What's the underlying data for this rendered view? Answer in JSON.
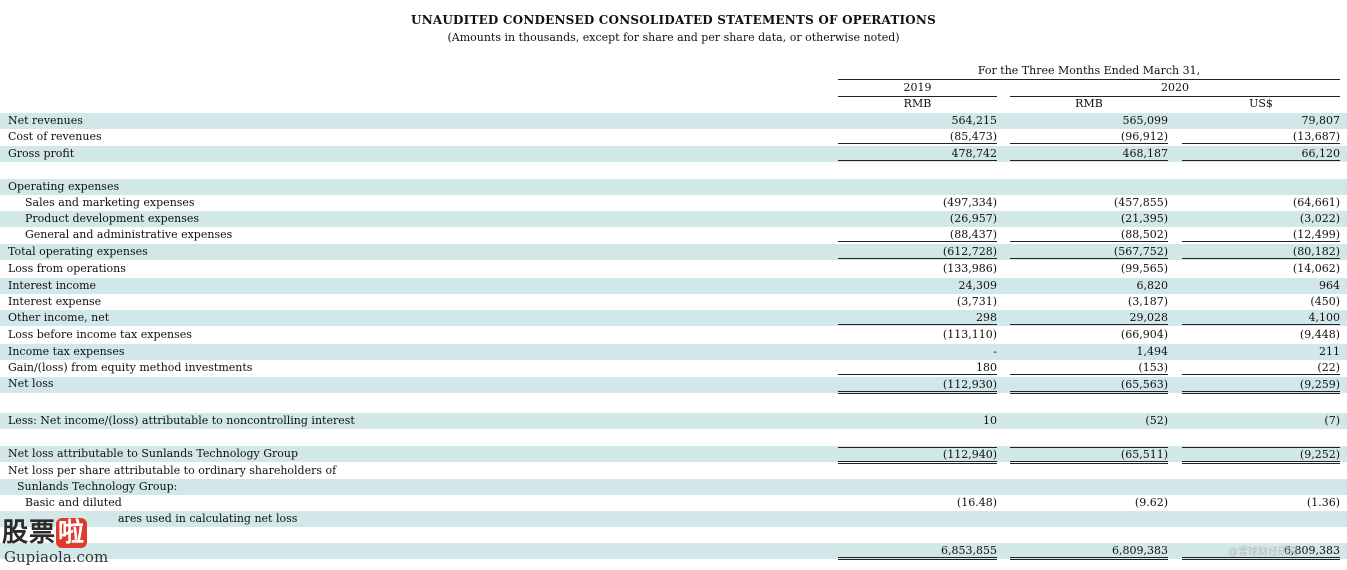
{
  "title": "UNAUDITED CONDENSED CONSOLIDATED STATEMENTS OF OPERATIONS",
  "subtitle": "(Amounts in thousands, except for share and per share data, or otherwise noted)",
  "period_header": "For the Three Months Ended March 31,",
  "years": {
    "y2019": "2019",
    "y2020": "2020"
  },
  "currencies": {
    "c1": "RMB",
    "c2": "RMB",
    "c3": "US$"
  },
  "rows": {
    "net_revenues": {
      "label": "Net revenues",
      "v1": "564,215",
      "v2": "565,099",
      "v3": "79,807"
    },
    "cost_of_revenues": {
      "label": "Cost of revenues",
      "v1": "(85,473)",
      "v2": "(96,912)",
      "v3": "(13,687)"
    },
    "gross_profit": {
      "label": "Gross profit",
      "v1": "478,742",
      "v2": "468,187",
      "v3": "66,120"
    },
    "operating_expenses": {
      "label": "Operating expenses"
    },
    "sales_marketing": {
      "label": "Sales and marketing expenses",
      "v1": "(497,334)",
      "v2": "(457,855)",
      "v3": "(64,661)"
    },
    "product_dev": {
      "label": "Product development expenses",
      "v1": "(26,957)",
      "v2": "(21,395)",
      "v3": "(3,022)"
    },
    "g_and_a": {
      "label": "General and administrative expenses",
      "v1": "(88,437)",
      "v2": "(88,502)",
      "v3": "(12,499)"
    },
    "total_opex": {
      "label": "Total operating expenses",
      "v1": "(612,728)",
      "v2": "(567,752)",
      "v3": "(80,182)"
    },
    "loss_from_ops": {
      "label": "Loss from operations",
      "v1": "(133,986)",
      "v2": "(99,565)",
      "v3": "(14,062)"
    },
    "interest_income": {
      "label": "Interest income",
      "v1": "24,309",
      "v2": "6,820",
      "v3": "964"
    },
    "interest_expense": {
      "label": "Interest expense",
      "v1": "(3,731)",
      "v2": "(3,187)",
      "v3": "(450)"
    },
    "other_income": {
      "label": "Other income, net",
      "v1": "298",
      "v2": "29,028",
      "v3": "4,100"
    },
    "loss_before_tax": {
      "label": "Loss before income tax expenses",
      "v1": "(113,110)",
      "v2": "(66,904)",
      "v3": "(9,448)"
    },
    "income_tax": {
      "label": "Income tax expenses",
      "v1": "-",
      "v2": "1,494",
      "v3": "211"
    },
    "equity_method": {
      "label": "Gain/(loss) from equity method investments",
      "v1": "180",
      "v2": "(153)",
      "v3": "(22)"
    },
    "net_loss": {
      "label": "Net loss",
      "v1": "(112,930)",
      "v2": "(65,563)",
      "v3": "(9,259)"
    },
    "nci": {
      "label": "Less: Net income/(loss) attributable to noncontrolling interest",
      "v1": "10",
      "v2": "(52)",
      "v3": "(7)"
    },
    "net_loss_sunlands": {
      "label": "Net loss attributable to Sunlands Technology Group",
      "v1": "(112,940)",
      "v2": "(65,511)",
      "v3": "(9,252)"
    },
    "nlps_line1": {
      "label": "Net loss per share attributable to ordinary shareholders of"
    },
    "nlps_line2": {
      "label": "Sunlands Technology Group:"
    },
    "basic_diluted": {
      "label": "Basic and diluted",
      "v1": "(16.48)",
      "v2": "(9.62)",
      "v3": "(1.36)"
    },
    "shares_used": {
      "label": "ares used in calculating net loss"
    },
    "shares_basic": {
      "v1": "6,853,855",
      "v2": "6,809,383",
      "v3": "6,809,383"
    }
  },
  "watermark": {
    "logo_cn_a": "股票",
    "logo_cn_b": "啦",
    "logo_en": "Gupiaola.com",
    "corner_text": "@雪球财经研究"
  }
}
